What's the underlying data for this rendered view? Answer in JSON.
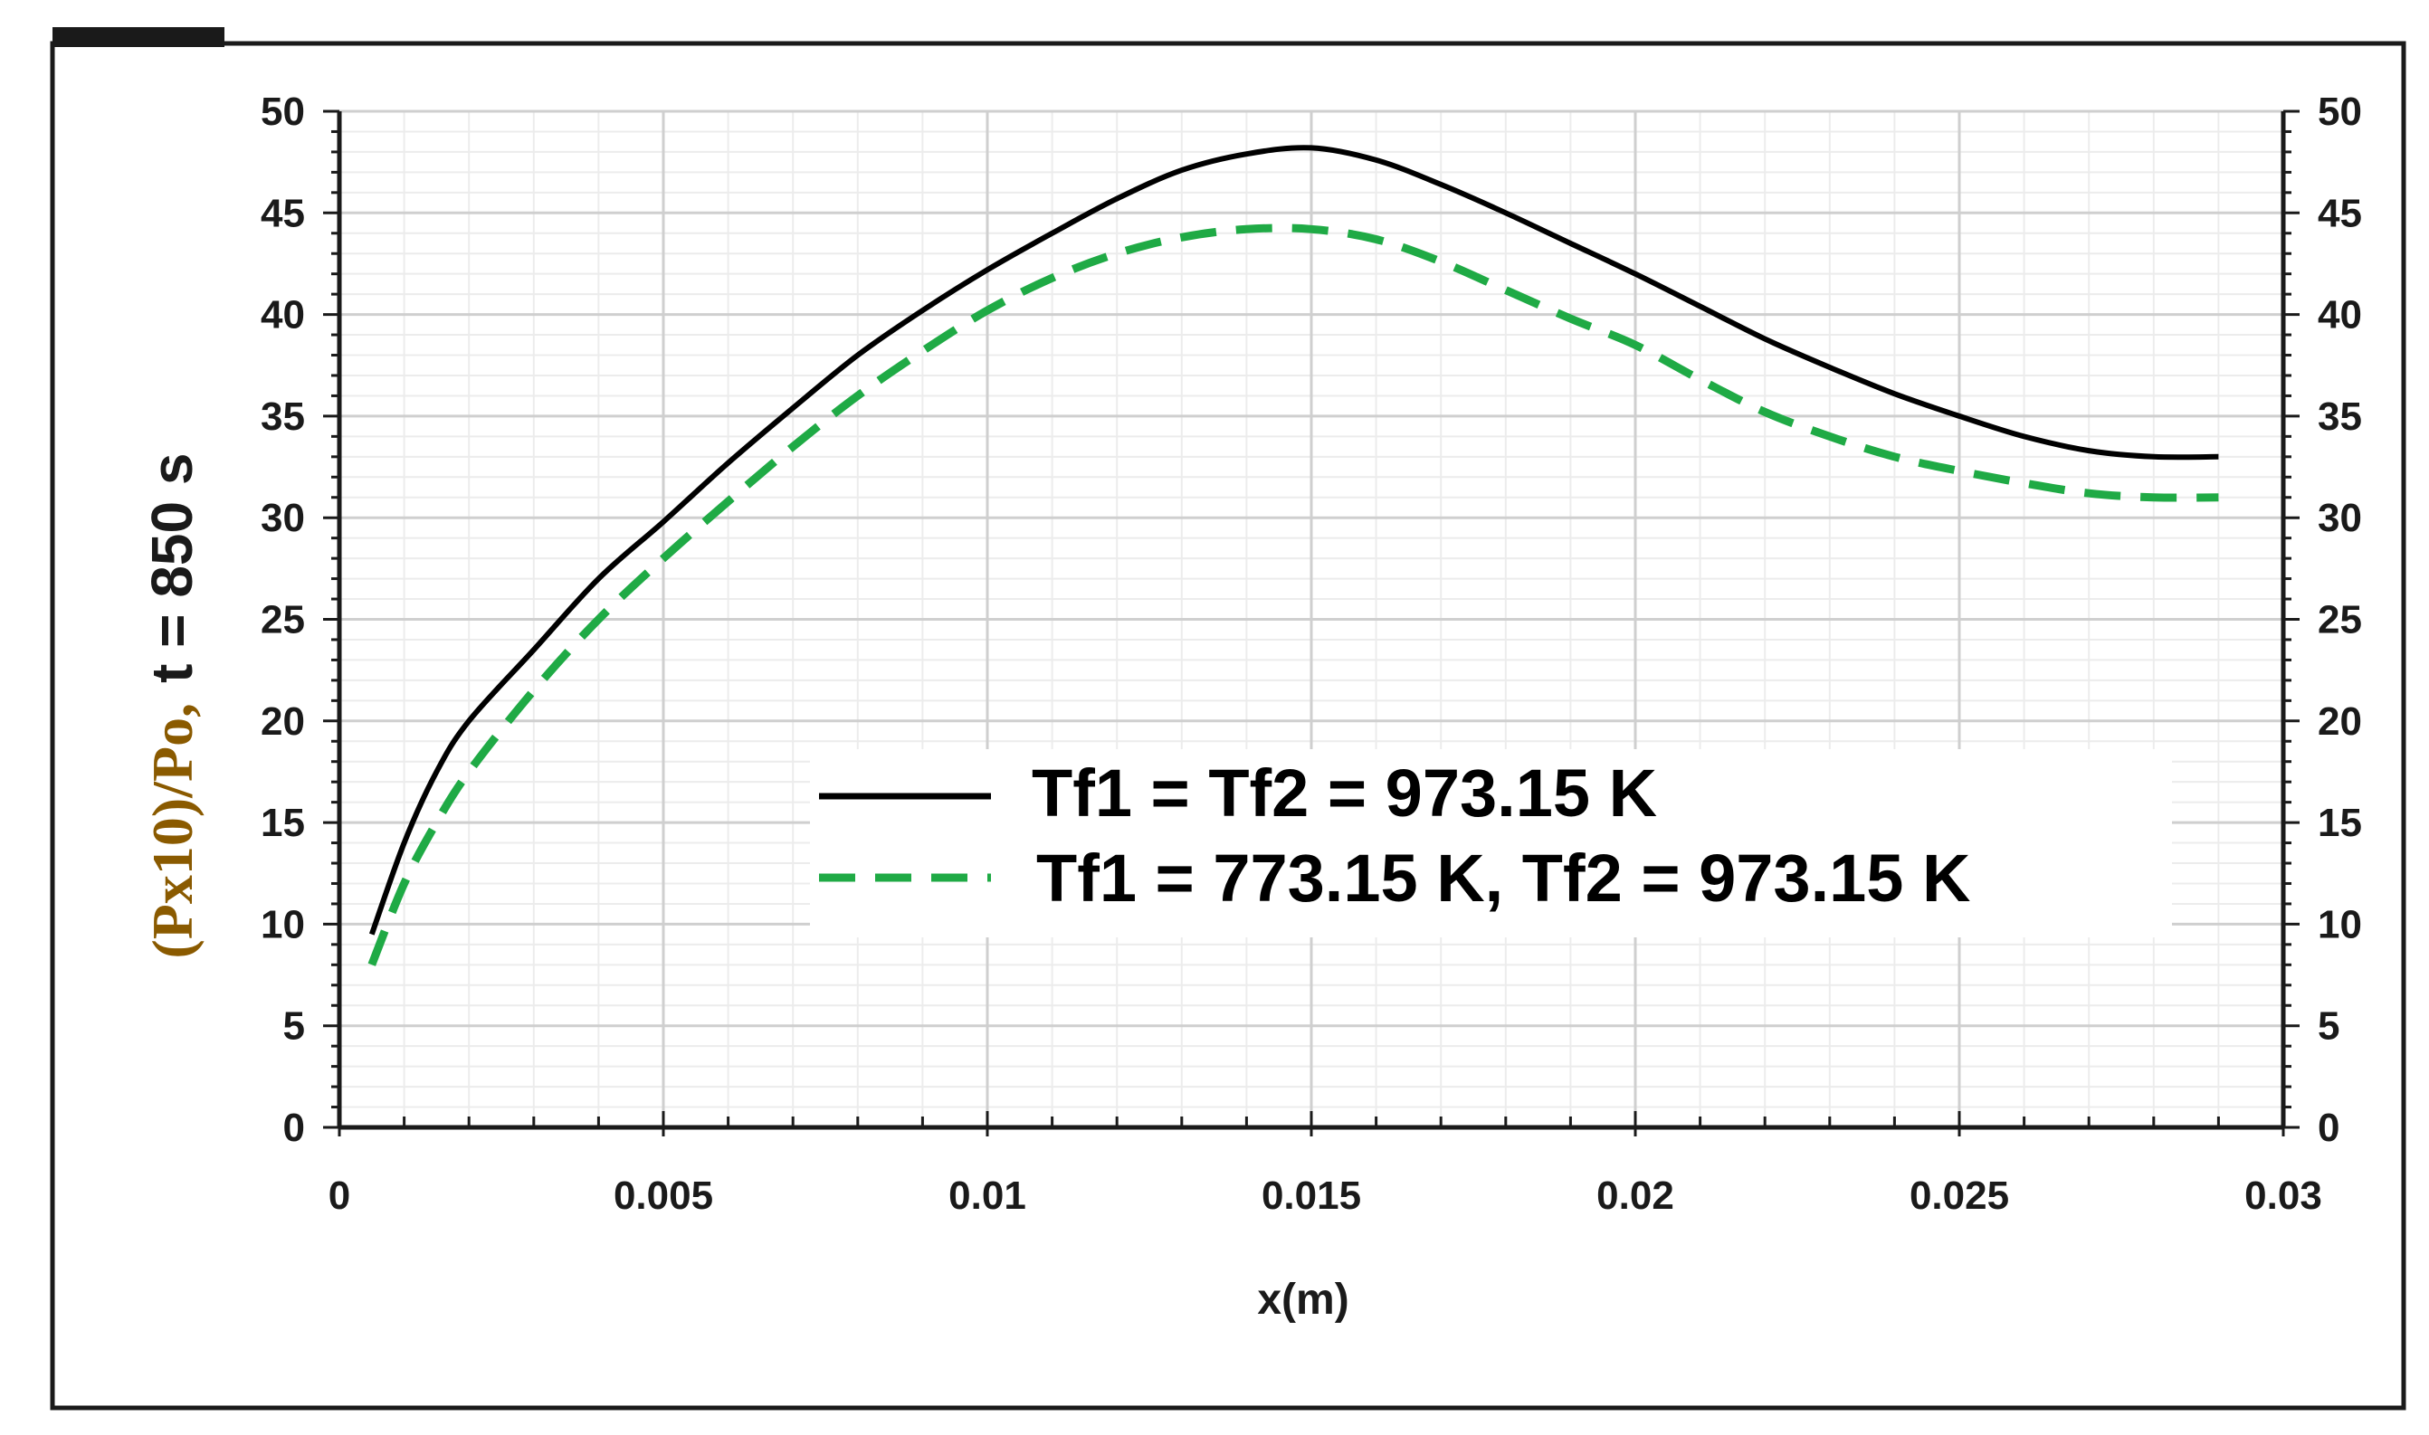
{
  "chart_data": {
    "type": "line",
    "xlabel": "x(m)",
    "ylabel_parts": {
      "quantity": "(Px10)/Po,",
      "condition": "t = 850 s"
    },
    "xlim": [
      0,
      0.03
    ],
    "ylim": [
      0,
      50
    ],
    "x_ticks": [
      "0",
      "0.005",
      "0.01",
      "0.015",
      "0.02",
      "0.025",
      "0.03"
    ],
    "y_ticks": [
      "0",
      "5",
      "10",
      "15",
      "20",
      "25",
      "30",
      "35",
      "40",
      "45",
      "50"
    ],
    "grid": true,
    "legend_position": "center-right",
    "series": [
      {
        "name": "Tf1 = Tf2 = 973.15 K",
        "color": "#000000",
        "style": "solid",
        "x": [
          0.0005,
          0.001,
          0.0015,
          0.002,
          0.003,
          0.004,
          0.005,
          0.006,
          0.007,
          0.008,
          0.009,
          0.01,
          0.011,
          0.012,
          0.013,
          0.014,
          0.015,
          0.016,
          0.017,
          0.018,
          0.019,
          0.02,
          0.021,
          0.022,
          0.023,
          0.024,
          0.025,
          0.026,
          0.027,
          0.028,
          0.029
        ],
        "y": [
          9.5,
          14,
          17.5,
          20,
          23.5,
          27,
          29.8,
          32.7,
          35.4,
          38,
          40.2,
          42.2,
          44,
          45.7,
          47.1,
          47.9,
          48.2,
          47.6,
          46.4,
          45,
          43.5,
          42,
          40.4,
          38.8,
          37.4,
          36.1,
          35,
          34,
          33.3,
          33,
          33
        ]
      },
      {
        "name": "Tf1 = 773.15 K, Tf2 = 973.15 K",
        "color": "#1faa45",
        "style": "dashed",
        "x": [
          0.0005,
          0.001,
          0.0015,
          0.002,
          0.003,
          0.004,
          0.005,
          0.006,
          0.007,
          0.008,
          0.009,
          0.01,
          0.011,
          0.012,
          0.013,
          0.014,
          0.015,
          0.016,
          0.017,
          0.018,
          0.019,
          0.02,
          0.021,
          0.022,
          0.023,
          0.024,
          0.025,
          0.026,
          0.027,
          0.028,
          0.029
        ],
        "y": [
          8,
          12,
          15,
          17.5,
          21.5,
          25,
          28,
          30.8,
          33.5,
          36,
          38.2,
          40.2,
          41.8,
          43,
          43.8,
          44.2,
          44.2,
          43.7,
          42.6,
          41.2,
          39.8,
          38.5,
          36.8,
          35.2,
          34,
          33,
          32.3,
          31.7,
          31.2,
          31,
          31
        ]
      }
    ]
  }
}
